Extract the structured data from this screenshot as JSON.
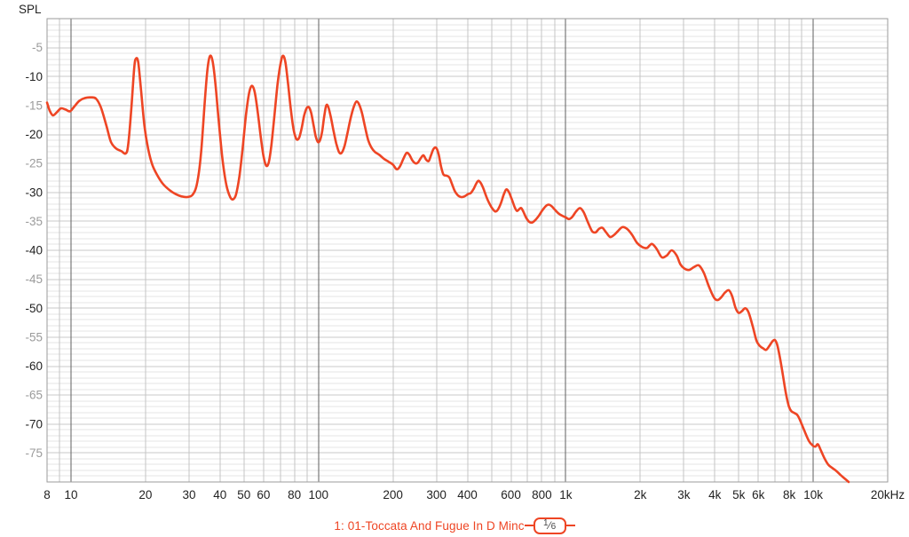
{
  "page": {
    "title": "SPL"
  },
  "colors": {
    "trace": "#ee4524",
    "grid_minor": "#e6e6e6",
    "grid_major": "#c9c9c9",
    "grid_vertical": "#c4c4c4",
    "grid_decade": "#5f5f5f",
    "plot_border": "#9b9b9b",
    "label_dark": "#222222",
    "label_light": "#9b9b9b",
    "badge_text": "#444444",
    "background": "#ffffff"
  },
  "legend": {
    "entry": "1: 01-Toccata And Fugue In D Minc",
    "smoothing_numerator": "1",
    "smoothing_denominator": "6"
  },
  "chart_data": {
    "type": "line",
    "title": "SPL",
    "x_scale": "log",
    "x_unit": "Hz",
    "x_range": [
      8,
      20000
    ],
    "y_range": [
      -80,
      0
    ],
    "y_minor_step_db": 1,
    "y_major_step_db": 5,
    "grid": true,
    "legend_position": "bottom-center",
    "x_gridlines": [
      8,
      9,
      10,
      20,
      30,
      40,
      50,
      60,
      70,
      80,
      90,
      100,
      200,
      300,
      400,
      500,
      600,
      700,
      800,
      900,
      1000,
      2000,
      3000,
      4000,
      5000,
      6000,
      7000,
      8000,
      9000,
      10000,
      20000
    ],
    "x_decades": [
      10,
      100,
      1000,
      10000
    ],
    "x_tick_labels": [
      {
        "f": 8,
        "label": "8"
      },
      {
        "f": 10,
        "label": "10"
      },
      {
        "f": 20,
        "label": "20"
      },
      {
        "f": 30,
        "label": "30"
      },
      {
        "f": 40,
        "label": "40"
      },
      {
        "f": 50,
        "label": "50"
      },
      {
        "f": 60,
        "label": "60"
      },
      {
        "f": 80,
        "label": "80"
      },
      {
        "f": 100,
        "label": "100"
      },
      {
        "f": 200,
        "label": "200"
      },
      {
        "f": 300,
        "label": "300"
      },
      {
        "f": 400,
        "label": "400"
      },
      {
        "f": 600,
        "label": "600"
      },
      {
        "f": 800,
        "label": "800"
      },
      {
        "f": 1000,
        "label": "1k"
      },
      {
        "f": 2000,
        "label": "2k"
      },
      {
        "f": 3000,
        "label": "3k"
      },
      {
        "f": 4000,
        "label": "4k"
      },
      {
        "f": 5000,
        "label": "5k"
      },
      {
        "f": 6000,
        "label": "6k"
      },
      {
        "f": 8000,
        "label": "8k"
      },
      {
        "f": 10000,
        "label": "10k"
      },
      {
        "f": 20000,
        "label": "20kHz"
      }
    ],
    "y_tick_labels": [
      "-5",
      "-10",
      "-15",
      "-20",
      "-25",
      "-30",
      "-35",
      "-40",
      "-45",
      "-50",
      "-55",
      "-60",
      "-65",
      "-70",
      "-75"
    ],
    "series": [
      {
        "name": "1: 01-Toccata And Fugue In D Minc",
        "smoothing": "1/6",
        "color": "#ee4524",
        "points": [
          [
            8.0,
            -14.5
          ],
          [
            8.2,
            -15.9
          ],
          [
            8.45,
            -16.7
          ],
          [
            8.75,
            -16.2
          ],
          [
            9.1,
            -15.5
          ],
          [
            9.5,
            -15.7
          ],
          [
            9.9,
            -16.0
          ],
          [
            10.3,
            -15.2
          ],
          [
            10.8,
            -14.2
          ],
          [
            11.4,
            -13.7
          ],
          [
            12.0,
            -13.6
          ],
          [
            12.6,
            -13.8
          ],
          [
            13.2,
            -15.3
          ],
          [
            13.9,
            -18.5
          ],
          [
            14.5,
            -21.3
          ],
          [
            15.2,
            -22.4
          ],
          [
            16.0,
            -22.9
          ],
          [
            16.6,
            -23.3
          ],
          [
            17.0,
            -22.0
          ],
          [
            17.5,
            -16.0
          ],
          [
            18.0,
            -8.5
          ],
          [
            18.3,
            -6.9
          ],
          [
            18.7,
            -7.6
          ],
          [
            19.2,
            -12.5
          ],
          [
            19.8,
            -18.5
          ],
          [
            20.5,
            -22.5
          ],
          [
            21.3,
            -25.2
          ],
          [
            22.3,
            -27.0
          ],
          [
            23.5,
            -28.5
          ],
          [
            25.0,
            -29.6
          ],
          [
            26.5,
            -30.3
          ],
          [
            28.0,
            -30.7
          ],
          [
            29.5,
            -30.8
          ],
          [
            31.0,
            -30.4
          ],
          [
            32.3,
            -28.5
          ],
          [
            33.5,
            -23.5
          ],
          [
            34.7,
            -14.5
          ],
          [
            35.6,
            -8.8
          ],
          [
            36.4,
            -6.5
          ],
          [
            37.3,
            -7.2
          ],
          [
            38.3,
            -11.0
          ],
          [
            39.5,
            -17.5
          ],
          [
            41.0,
            -24.5
          ],
          [
            42.5,
            -28.8
          ],
          [
            44.0,
            -30.8
          ],
          [
            45.2,
            -31.2
          ],
          [
            46.5,
            -30.3
          ],
          [
            48.0,
            -27.0
          ],
          [
            49.5,
            -22.0
          ],
          [
            51.0,
            -16.5
          ],
          [
            52.5,
            -12.8
          ],
          [
            53.8,
            -11.6
          ],
          [
            55.2,
            -12.6
          ],
          [
            56.8,
            -16.0
          ],
          [
            58.5,
            -20.5
          ],
          [
            60.0,
            -23.8
          ],
          [
            61.5,
            -25.4
          ],
          [
            63.0,
            -24.8
          ],
          [
            64.5,
            -22.0
          ],
          [
            66.5,
            -16.5
          ],
          [
            68.5,
            -11.0
          ],
          [
            70.5,
            -7.5
          ],
          [
            72.0,
            -6.4
          ],
          [
            73.6,
            -7.6
          ],
          [
            75.5,
            -11.5
          ],
          [
            77.5,
            -16.0
          ],
          [
            79.5,
            -19.3
          ],
          [
            81.5,
            -20.8
          ],
          [
            83.5,
            -20.6
          ],
          [
            85.5,
            -19.0
          ],
          [
            87.5,
            -16.8
          ],
          [
            89.5,
            -15.5
          ],
          [
            91.5,
            -15.3
          ],
          [
            93.5,
            -16.3
          ],
          [
            95.5,
            -18.3
          ],
          [
            97.5,
            -20.3
          ],
          [
            99.5,
            -21.3
          ],
          [
            101.5,
            -21.0
          ],
          [
            103.5,
            -19.5
          ],
          [
            105.5,
            -16.9
          ],
          [
            107.5,
            -15.0
          ],
          [
            109.5,
            -15.2
          ],
          [
            112.0,
            -16.8
          ],
          [
            115.0,
            -19.3
          ],
          [
            118.0,
            -21.5
          ],
          [
            121.0,
            -23.0
          ],
          [
            124.0,
            -23.2
          ],
          [
            127.5,
            -22.0
          ],
          [
            131.0,
            -19.8
          ],
          [
            135.0,
            -17.2
          ],
          [
            139.0,
            -15.2
          ],
          [
            142.5,
            -14.3
          ],
          [
            146.0,
            -14.8
          ],
          [
            150.0,
            -16.3
          ],
          [
            154.5,
            -18.8
          ],
          [
            159.0,
            -21.0
          ],
          [
            163.5,
            -22.2
          ],
          [
            169.0,
            -23.0
          ],
          [
            176.0,
            -23.5
          ],
          [
            184.0,
            -24.2
          ],
          [
            192.0,
            -24.7
          ],
          [
            200.0,
            -25.2
          ],
          [
            207.0,
            -26.0
          ],
          [
            213.0,
            -25.6
          ],
          [
            220.0,
            -24.3
          ],
          [
            227.0,
            -23.2
          ],
          [
            233.0,
            -23.5
          ],
          [
            240.0,
            -24.5
          ],
          [
            247.0,
            -25.0
          ],
          [
            253.0,
            -24.8
          ],
          [
            260.0,
            -24.0
          ],
          [
            266.0,
            -23.6
          ],
          [
            272.0,
            -24.3
          ],
          [
            279.0,
            -24.6
          ],
          [
            285.0,
            -23.6
          ],
          [
            292.0,
            -22.5
          ],
          [
            299.0,
            -22.3
          ],
          [
            306.0,
            -23.4
          ],
          [
            313.0,
            -25.5
          ],
          [
            320.0,
            -26.9
          ],
          [
            329.0,
            -27.1
          ],
          [
            338.0,
            -27.4
          ],
          [
            347.0,
            -28.6
          ],
          [
            356.0,
            -29.8
          ],
          [
            366.0,
            -30.5
          ],
          [
            377.0,
            -30.8
          ],
          [
            389.0,
            -30.7
          ],
          [
            402.0,
            -30.3
          ],
          [
            413.0,
            -30.1
          ],
          [
            424.0,
            -29.4
          ],
          [
            434.0,
            -28.5
          ],
          [
            443.0,
            -28.0
          ],
          [
            452.0,
            -28.3
          ],
          [
            463.0,
            -29.2
          ],
          [
            477.0,
            -30.7
          ],
          [
            492.0,
            -32.0
          ],
          [
            507.0,
            -32.9
          ],
          [
            519.0,
            -33.3
          ],
          [
            531.0,
            -33.0
          ],
          [
            546.0,
            -31.9
          ],
          [
            561.0,
            -30.4
          ],
          [
            574.0,
            -29.5
          ],
          [
            588.0,
            -29.9
          ],
          [
            605.0,
            -31.2
          ],
          [
            622.0,
            -32.6
          ],
          [
            635.0,
            -33.2
          ],
          [
            648.0,
            -32.9
          ],
          [
            660.0,
            -32.7
          ],
          [
            673.0,
            -33.3
          ],
          [
            692.0,
            -34.4
          ],
          [
            712.0,
            -35.1
          ],
          [
            731.0,
            -35.2
          ],
          [
            752.0,
            -34.8
          ],
          [
            776.0,
            -34.1
          ],
          [
            801.0,
            -33.2
          ],
          [
            828.0,
            -32.4
          ],
          [
            852.0,
            -32.1
          ],
          [
            877.0,
            -32.4
          ],
          [
            903.0,
            -33.0
          ],
          [
            932.0,
            -33.6
          ],
          [
            963.0,
            -34.0
          ],
          [
            998.0,
            -34.3
          ],
          [
            1030.0,
            -34.6
          ],
          [
            1063.0,
            -34.2
          ],
          [
            1100.0,
            -33.3
          ],
          [
            1140.0,
            -32.7
          ],
          [
            1180.0,
            -33.4
          ],
          [
            1229.0,
            -35.2
          ],
          [
            1277.0,
            -36.7
          ],
          [
            1320.0,
            -36.9
          ],
          [
            1361.0,
            -36.3
          ],
          [
            1404.0,
            -36.1
          ],
          [
            1455.0,
            -36.9
          ],
          [
            1509.0,
            -37.7
          ],
          [
            1562.0,
            -37.4
          ],
          [
            1623.0,
            -36.7
          ],
          [
            1693.0,
            -36.0
          ],
          [
            1768.0,
            -36.3
          ],
          [
            1851.0,
            -37.3
          ],
          [
            1938.0,
            -38.7
          ],
          [
            2030.0,
            -39.4
          ],
          [
            2126.0,
            -39.6
          ],
          [
            2227.0,
            -38.9
          ],
          [
            2332.0,
            -39.8
          ],
          [
            2442.0,
            -41.2
          ],
          [
            2558.0,
            -40.9
          ],
          [
            2679.0,
            -40.0
          ],
          [
            2806.0,
            -40.9
          ],
          [
            2903.0,
            -42.4
          ],
          [
            3003.0,
            -43.1
          ],
          [
            3145.0,
            -43.4
          ],
          [
            3294.0,
            -42.9
          ],
          [
            3450.0,
            -42.6
          ],
          [
            3613.0,
            -43.9
          ],
          [
            3784.0,
            -46.2
          ],
          [
            3963.0,
            -48.1
          ],
          [
            4100.0,
            -48.6
          ],
          [
            4250.0,
            -48.1
          ],
          [
            4400.0,
            -47.3
          ],
          [
            4560.0,
            -46.9
          ],
          [
            4700.0,
            -47.9
          ],
          [
            4850.0,
            -49.9
          ],
          [
            4990.0,
            -50.8
          ],
          [
            5150.0,
            -50.5
          ],
          [
            5320.0,
            -50.0
          ],
          [
            5500.0,
            -50.9
          ],
          [
            5700.0,
            -53.2
          ],
          [
            5900.0,
            -55.6
          ],
          [
            6080.0,
            -56.5
          ],
          [
            6260.0,
            -56.9
          ],
          [
            6450.0,
            -57.2
          ],
          [
            6650.0,
            -56.5
          ],
          [
            6850.0,
            -55.7
          ],
          [
            7000.0,
            -55.5
          ],
          [
            7150.0,
            -56.3
          ],
          [
            7350.0,
            -58.7
          ],
          [
            7550.0,
            -61.7
          ],
          [
            7770.0,
            -64.9
          ],
          [
            7980.0,
            -67.0
          ],
          [
            8170.0,
            -67.8
          ],
          [
            8400.0,
            -68.1
          ],
          [
            8650.0,
            -68.5
          ],
          [
            8900.0,
            -69.6
          ],
          [
            9200.0,
            -71.1
          ],
          [
            9600.0,
            -72.9
          ],
          [
            9950.0,
            -73.7
          ],
          [
            10200.0,
            -73.9
          ],
          [
            10450.0,
            -73.5
          ],
          [
            10750.0,
            -74.6
          ],
          [
            11100.0,
            -75.9
          ],
          [
            11500.0,
            -77.0
          ],
          [
            11950.0,
            -77.6
          ],
          [
            12400.0,
            -78.1
          ],
          [
            12900.0,
            -78.8
          ],
          [
            13400.0,
            -79.4
          ],
          [
            13900.0,
            -80.0
          ]
        ]
      }
    ]
  }
}
